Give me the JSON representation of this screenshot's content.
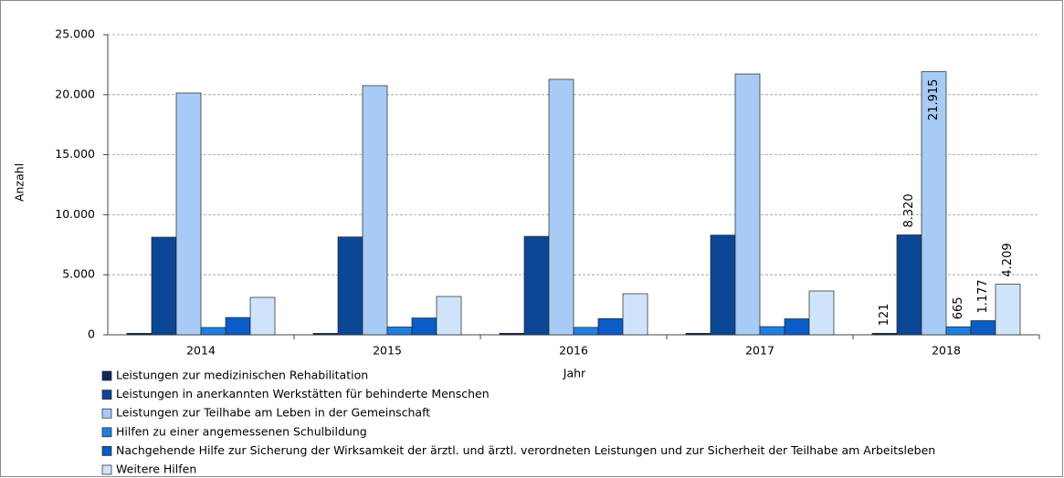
{
  "chart_data": {
    "type": "bar",
    "x_label": "Jahr",
    "y_label": "Anzahl",
    "categories": [
      "2014",
      "2015",
      "2016",
      "2017",
      "2018"
    ],
    "series": [
      {
        "name": "Leistungen zur medizinischen Rehabilitation",
        "color": "#0b2a5a",
        "values": [
          120,
          118,
          122,
          120,
          121
        ],
        "value_labels": [
          null,
          null,
          null,
          null,
          "121"
        ]
      },
      {
        "name": "Leistungen in anerkannten Werkstätten für behinderte Menschen",
        "color": "#0c4796",
        "values": [
          8130,
          8150,
          8200,
          8300,
          8320
        ],
        "value_labels": [
          null,
          null,
          null,
          null,
          "8.320"
        ]
      },
      {
        "name": "Leistungen zur Teilhabe am Leben in der Gemeinschaft",
        "color": "#a7cbf4",
        "values": [
          20140,
          20750,
          21280,
          21730,
          21915
        ],
        "value_labels": [
          null,
          null,
          null,
          null,
          "21.915"
        ]
      },
      {
        "name": "Hilfen zu einer angemessenen Schulbildung",
        "color": "#1f7fe0",
        "values": [
          610,
          650,
          620,
          680,
          665
        ],
        "value_labels": [
          null,
          null,
          null,
          null,
          "665"
        ]
      },
      {
        "name": "Nachgehende Hilfe zur Sicherung der Wirksamkeit der ärztl. und ärztl. verordneten Leistungen und zur Sicherheit der Teilhabe am Arbeitsleben",
        "color": "#0a5cc6",
        "values": [
          1440,
          1400,
          1350,
          1330,
          1177
        ],
        "value_labels": [
          null,
          null,
          null,
          null,
          "1.177"
        ]
      },
      {
        "name": "Weitere Hilfen",
        "color": "#cfe3fa",
        "values": [
          3115,
          3190,
          3420,
          3650,
          4209
        ],
        "value_labels": [
          null,
          null,
          null,
          null,
          "4.209"
        ]
      }
    ],
    "ylim": [
      0,
      25000
    ],
    "yticks": [
      0,
      {
        "value": 5000,
        "label": "5.000"
      },
      {
        "value": 10000,
        "label": "10.000"
      },
      {
        "value": 15000,
        "label": "15.000"
      },
      {
        "value": 20000,
        "label": "20.000"
      },
      {
        "value": 25000,
        "label": "25.000"
      }
    ],
    "grid": true,
    "legend": "bottom"
  }
}
